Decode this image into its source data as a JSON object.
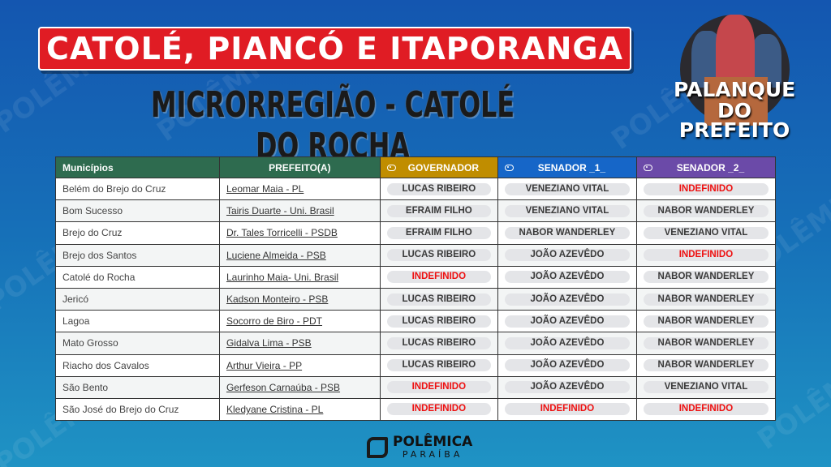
{
  "title": "CATOLÉ, PIANCÓ E ITAPORANGA",
  "subtitle": "MICRORREGIÃO - CATOLÉ DO ROCHA",
  "logo": {
    "line1": "PALANQUE",
    "line2": "DO",
    "line3": "PREFEITO"
  },
  "footer": {
    "brand": "POLÊMICA",
    "sub": "PARAÍBA"
  },
  "watermark": "POLÊMICA",
  "colors": {
    "banner": "#e01c24",
    "header_green": "#2e6b4f",
    "governador": "#c08d00",
    "senador1": "#1666c8",
    "senador2": "#6b4aa8",
    "indefinido": "#ee1111"
  },
  "table": {
    "headers": [
      "Municípios",
      "PREFEITO(A)",
      "GOVERNADOR",
      "SENADOR _1_",
      "SENADOR _2_"
    ],
    "rows": [
      [
        "Belém do Brejo do Cruz",
        "Leomar Maia - PL",
        "LUCAS RIBEIRO",
        "VENEZIANO VITAL",
        "INDEFINIDO"
      ],
      [
        "Bom Sucesso",
        "Tairis Duarte - Uni. Brasil",
        "EFRAIM FILHO",
        "VENEZIANO VITAL",
        "NABOR WANDERLEY"
      ],
      [
        "Brejo do Cruz",
        "Dr. Tales Torricelli - PSDB",
        "EFRAIM FILHO",
        "NABOR WANDERLEY",
        "VENEZIANO VITAL"
      ],
      [
        "Brejo dos Santos",
        "Luciene Almeida - PSB",
        "LUCAS RIBEIRO",
        "JOÃO AZEVÊDO",
        "INDEFINIDO"
      ],
      [
        "Catolé do Rocha",
        "Laurinho Maia- Uni. Brasil",
        "INDEFINIDO",
        "JOÃO AZEVÊDO",
        "NABOR WANDERLEY"
      ],
      [
        "Jericó",
        "Kadson Monteiro - PSB",
        "LUCAS RIBEIRO",
        "JOÃO AZEVÊDO",
        "NABOR WANDERLEY"
      ],
      [
        "Lagoa",
        "Socorro de Biro - PDT",
        "LUCAS RIBEIRO",
        "JOÃO AZEVÊDO",
        "NABOR WANDERLEY"
      ],
      [
        "Mato Grosso",
        "Gidalva Lima - PSB",
        "LUCAS RIBEIRO",
        "JOÃO AZEVÊDO",
        "NABOR WANDERLEY"
      ],
      [
        "Riacho dos Cavalos",
        "Arthur Vieira - PP",
        "LUCAS RIBEIRO",
        "JOÃO AZEVÊDO",
        "NABOR WANDERLEY"
      ],
      [
        "São Bento",
        "Gerfeson Carnaúba - PSB",
        "INDEFINIDO",
        "JOÃO AZEVÊDO",
        "VENEZIANO VITAL"
      ],
      [
        "São José do Brejo do Cruz",
        "Kledyane Cristina - PL",
        "INDEFINIDO",
        "INDEFINIDO",
        "INDEFINIDO"
      ]
    ]
  }
}
